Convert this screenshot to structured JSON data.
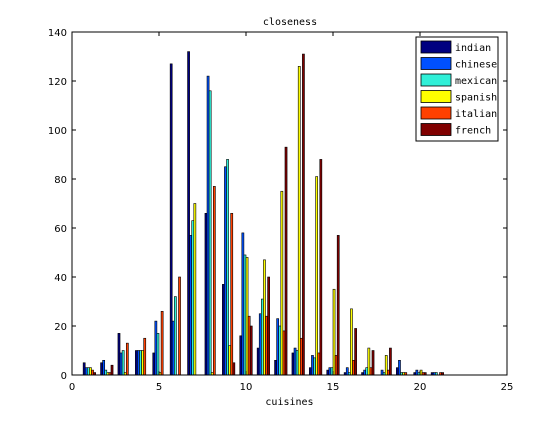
{
  "chart_data": {
    "type": "bar",
    "title": "closeness",
    "xlabel": "cuisines",
    "ylabel": "",
    "xlim": [
      0,
      25
    ],
    "ylim": [
      0,
      140
    ],
    "xticks": [
      0,
      5,
      10,
      15,
      20,
      25
    ],
    "yticks": [
      0,
      20,
      40,
      60,
      80,
      100,
      120,
      140
    ],
    "grid": false,
    "legend_position": "top-right",
    "bin_centers": [
      1,
      2,
      3,
      4,
      5,
      6,
      7,
      8,
      9,
      10,
      11,
      12,
      13,
      14,
      15,
      16,
      17,
      18,
      19,
      20,
      21
    ],
    "series": [
      {
        "name": "indian",
        "color": "#000080",
        "values": [
          5,
          5,
          17,
          10,
          9,
          127,
          132,
          66,
          37,
          16,
          11,
          6,
          9,
          3,
          2,
          1,
          1,
          0,
          3,
          1,
          1
        ]
      },
      {
        "name": "chinese",
        "color": "#0050ff",
        "values": [
          3,
          6,
          9,
          10,
          22,
          22,
          57,
          122,
          85,
          58,
          25,
          23,
          11,
          8,
          3,
          3,
          2,
          2,
          6,
          2,
          1
        ]
      },
      {
        "name": "mexican",
        "color": "#30f0d8",
        "values": [
          3,
          2,
          10,
          10,
          17,
          32,
          63,
          116,
          88,
          49,
          31,
          20,
          10,
          7,
          3,
          1,
          3,
          1,
          1,
          1,
          1
        ]
      },
      {
        "name": "spanish",
        "color": "#ffff00",
        "values": [
          3,
          1,
          1,
          10,
          1,
          0,
          70,
          1,
          12,
          48,
          47,
          75,
          126,
          81,
          35,
          27,
          11,
          8,
          1,
          2,
          0
        ]
      },
      {
        "name": "italian",
        "color": "#ff4000",
        "values": [
          2,
          1,
          13,
          15,
          26,
          40,
          0,
          77,
          66,
          24,
          24,
          18,
          15,
          9,
          8,
          6,
          3,
          2,
          1,
          1,
          1
        ]
      },
      {
        "name": "french",
        "color": "#800000",
        "values": [
          1,
          4,
          0,
          0,
          0,
          0,
          0,
          0,
          5,
          20,
          40,
          93,
          131,
          88,
          57,
          19,
          10,
          11,
          0,
          1,
          1
        ]
      }
    ]
  }
}
